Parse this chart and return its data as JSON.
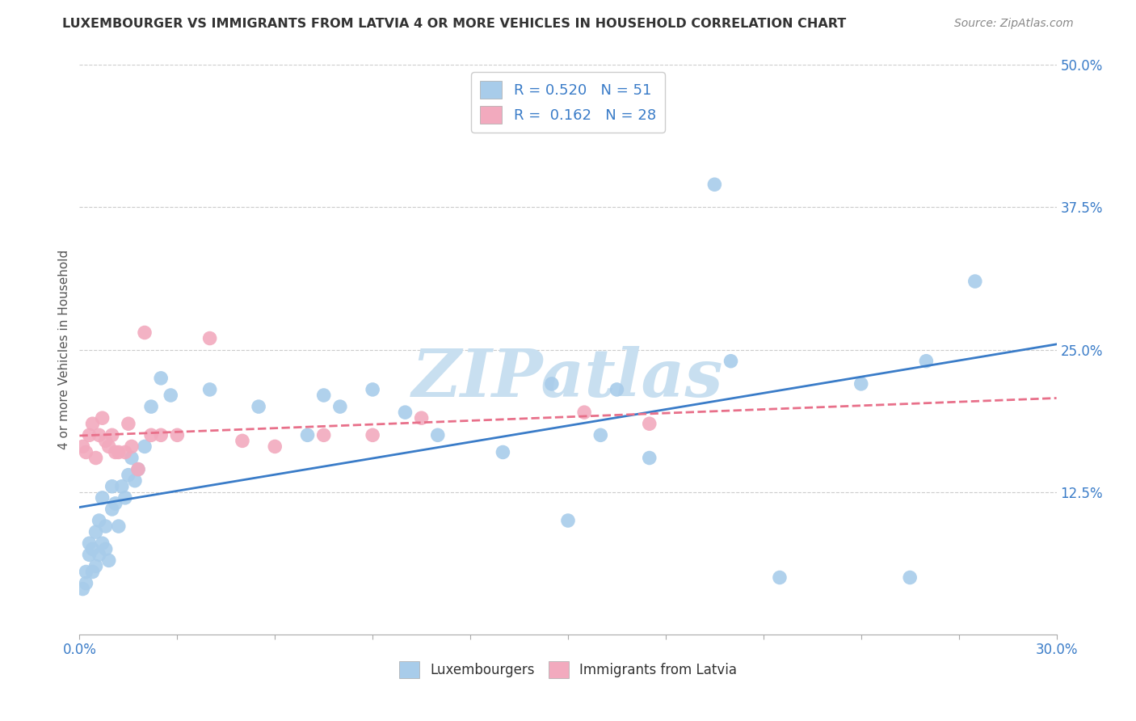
{
  "title": "LUXEMBOURGER VS IMMIGRANTS FROM LATVIA 4 OR MORE VEHICLES IN HOUSEHOLD CORRELATION CHART",
  "source": "Source: ZipAtlas.com",
  "ylabel": "4 or more Vehicles in Household",
  "xmin": 0.0,
  "xmax": 0.3,
  "ymin": 0.0,
  "ymax": 0.5,
  "yticks": [
    0.0,
    0.125,
    0.25,
    0.375,
    0.5
  ],
  "ytick_labels": [
    "",
    "12.5%",
    "25.0%",
    "37.5%",
    "50.0%"
  ],
  "xtick_labels": [
    "0.0%",
    "",
    "",
    "",
    "",
    "",
    "",
    "",
    "",
    "",
    "30.0%"
  ],
  "legend_r1": "R = 0.520",
  "legend_n1": "N = 51",
  "legend_r2": "R =  0.162",
  "legend_n2": "N = 28",
  "legend_label1": "Luxembourgers",
  "legend_label2": "Immigrants from Latvia",
  "blue_color": "#A8CCEA",
  "pink_color": "#F2AABE",
  "blue_line_color": "#3A7CC8",
  "pink_line_color": "#E8708A",
  "text_blue": "#3A7CC8",
  "watermark": "ZIPatlas",
  "watermark_color": "#C8DFF0",
  "blue_x": [
    0.001,
    0.002,
    0.002,
    0.003,
    0.003,
    0.004,
    0.004,
    0.005,
    0.005,
    0.006,
    0.006,
    0.007,
    0.007,
    0.008,
    0.008,
    0.009,
    0.01,
    0.01,
    0.011,
    0.012,
    0.013,
    0.014,
    0.015,
    0.016,
    0.017,
    0.018,
    0.02,
    0.022,
    0.025,
    0.028,
    0.04,
    0.055,
    0.07,
    0.075,
    0.08,
    0.09,
    0.1,
    0.11,
    0.13,
    0.145,
    0.15,
    0.16,
    0.165,
    0.175,
    0.195,
    0.2,
    0.215,
    0.24,
    0.255,
    0.26,
    0.275
  ],
  "blue_y": [
    0.04,
    0.045,
    0.055,
    0.07,
    0.08,
    0.055,
    0.075,
    0.06,
    0.09,
    0.07,
    0.1,
    0.12,
    0.08,
    0.075,
    0.095,
    0.065,
    0.11,
    0.13,
    0.115,
    0.095,
    0.13,
    0.12,
    0.14,
    0.155,
    0.135,
    0.145,
    0.165,
    0.2,
    0.225,
    0.21,
    0.215,
    0.2,
    0.175,
    0.21,
    0.2,
    0.215,
    0.195,
    0.175,
    0.16,
    0.22,
    0.1,
    0.175,
    0.215,
    0.155,
    0.395,
    0.24,
    0.05,
    0.22,
    0.05,
    0.24,
    0.31
  ],
  "pink_x": [
    0.001,
    0.002,
    0.003,
    0.004,
    0.005,
    0.006,
    0.007,
    0.008,
    0.009,
    0.01,
    0.011,
    0.012,
    0.014,
    0.015,
    0.016,
    0.018,
    0.02,
    0.022,
    0.025,
    0.03,
    0.04,
    0.05,
    0.06,
    0.075,
    0.09,
    0.105,
    0.155,
    0.175
  ],
  "pink_y": [
    0.165,
    0.16,
    0.175,
    0.185,
    0.155,
    0.175,
    0.19,
    0.17,
    0.165,
    0.175,
    0.16,
    0.16,
    0.16,
    0.185,
    0.165,
    0.145,
    0.265,
    0.175,
    0.175,
    0.175,
    0.26,
    0.17,
    0.165,
    0.175,
    0.175,
    0.19,
    0.195,
    0.185
  ]
}
